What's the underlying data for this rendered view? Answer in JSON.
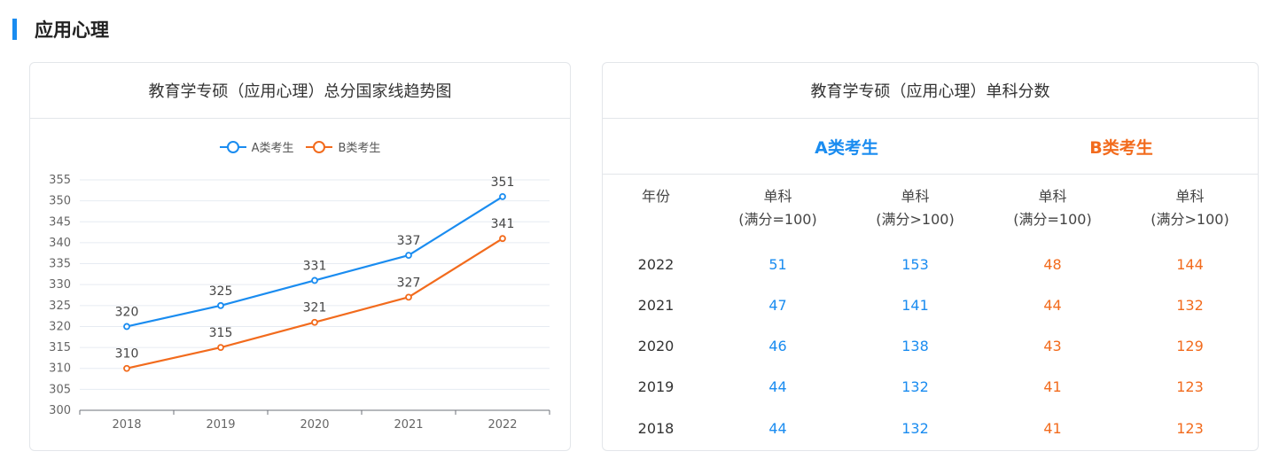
{
  "section": {
    "title": "应用心理"
  },
  "left_card": {
    "title": "教育学专硕（应用心理）总分国家线趋势图"
  },
  "colors": {
    "accent": "#1a8cf0",
    "series_a": "#1a8cf0",
    "series_b": "#f26b1d"
  },
  "chart_data": {
    "type": "line",
    "categories": [
      "2018",
      "2019",
      "2020",
      "2021",
      "2022"
    ],
    "series": [
      {
        "name": "A类考生",
        "values": [
          320,
          325,
          331,
          337,
          351
        ],
        "color": "#1a8cf0"
      },
      {
        "name": "B类考生",
        "values": [
          310,
          315,
          321,
          327,
          341
        ],
        "color": "#f26b1d"
      }
    ],
    "ylim": [
      300,
      355
    ],
    "yticks": [
      300,
      305,
      310,
      315,
      320,
      325,
      330,
      335,
      340,
      345,
      350,
      355
    ],
    "xlabel": "",
    "ylabel": "",
    "grid": true,
    "legend_position": "top-center",
    "data_labels": true
  },
  "right_card": {
    "title": "教育学专硕（应用心理）单科分数",
    "group_a": "A类考生",
    "group_b": "B类考生",
    "columns": [
      {
        "line1": "年份",
        "line2": ""
      },
      {
        "line1": "单科",
        "line2": "(满分=100)"
      },
      {
        "line1": "单科",
        "line2": "(满分>100)"
      },
      {
        "line1": "单科",
        "line2": "(满分=100)"
      },
      {
        "line1": "单科",
        "line2": "(满分>100)"
      }
    ],
    "rows": [
      [
        "2022",
        "51",
        "153",
        "48",
        "144"
      ],
      [
        "2021",
        "47",
        "141",
        "44",
        "132"
      ],
      [
        "2020",
        "46",
        "138",
        "43",
        "129"
      ],
      [
        "2019",
        "44",
        "132",
        "41",
        "123"
      ],
      [
        "2018",
        "44",
        "132",
        "41",
        "123"
      ]
    ]
  }
}
